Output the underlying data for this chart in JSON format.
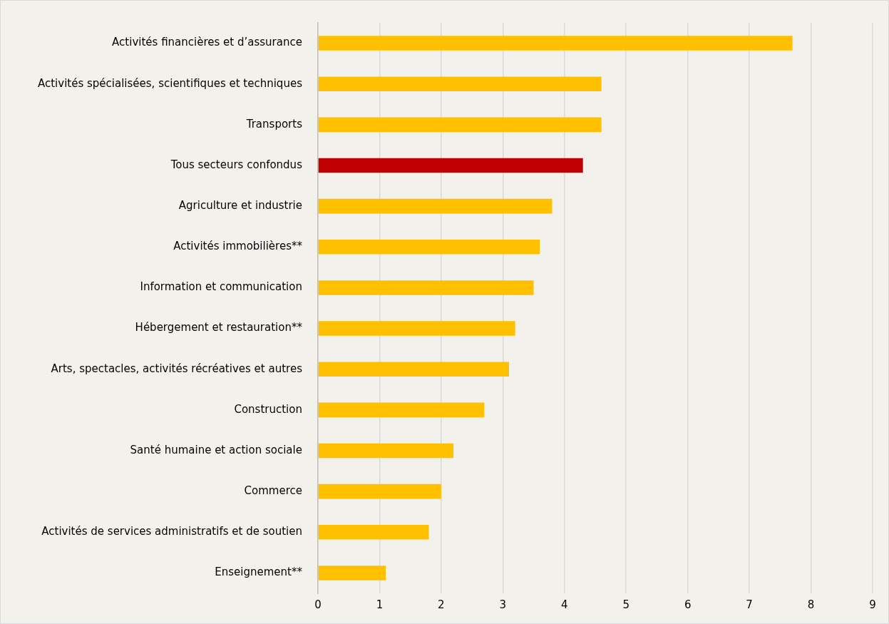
{
  "chart_data": {
    "type": "bar",
    "orientation": "horizontal",
    "categories": [
      "Activités financières et d’assurance",
      "Activités spécialisées, scientifiques et techniques",
      "Transports",
      "Tous secteurs confondus",
      "Agriculture et industrie",
      "Activités immobilières**",
      "Information et communication",
      "Hébergement et restauration**",
      "Arts, spectacles, activités récréatives et autres",
      "Construction",
      "Santé humaine et action sociale",
      "Commerce",
      "Activités de services administratifs et de soutien",
      "Enseignement**"
    ],
    "values": [
      7.7,
      4.6,
      4.6,
      4.3,
      3.8,
      3.6,
      3.5,
      3.2,
      3.1,
      2.7,
      2.2,
      2.0,
      1.8,
      1.1
    ],
    "colors": [
      "#ffc000",
      "#ffc000",
      "#ffc000",
      "#c00000",
      "#ffc000",
      "#ffc000",
      "#ffc000",
      "#ffc000",
      "#ffc000",
      "#ffc000",
      "#ffc000",
      "#ffc000",
      "#ffc000",
      "#ffc000"
    ],
    "xlim": [
      0,
      9
    ],
    "xticks": [
      0,
      1,
      2,
      3,
      4,
      5,
      6,
      7,
      8,
      9
    ],
    "grid": "x"
  }
}
